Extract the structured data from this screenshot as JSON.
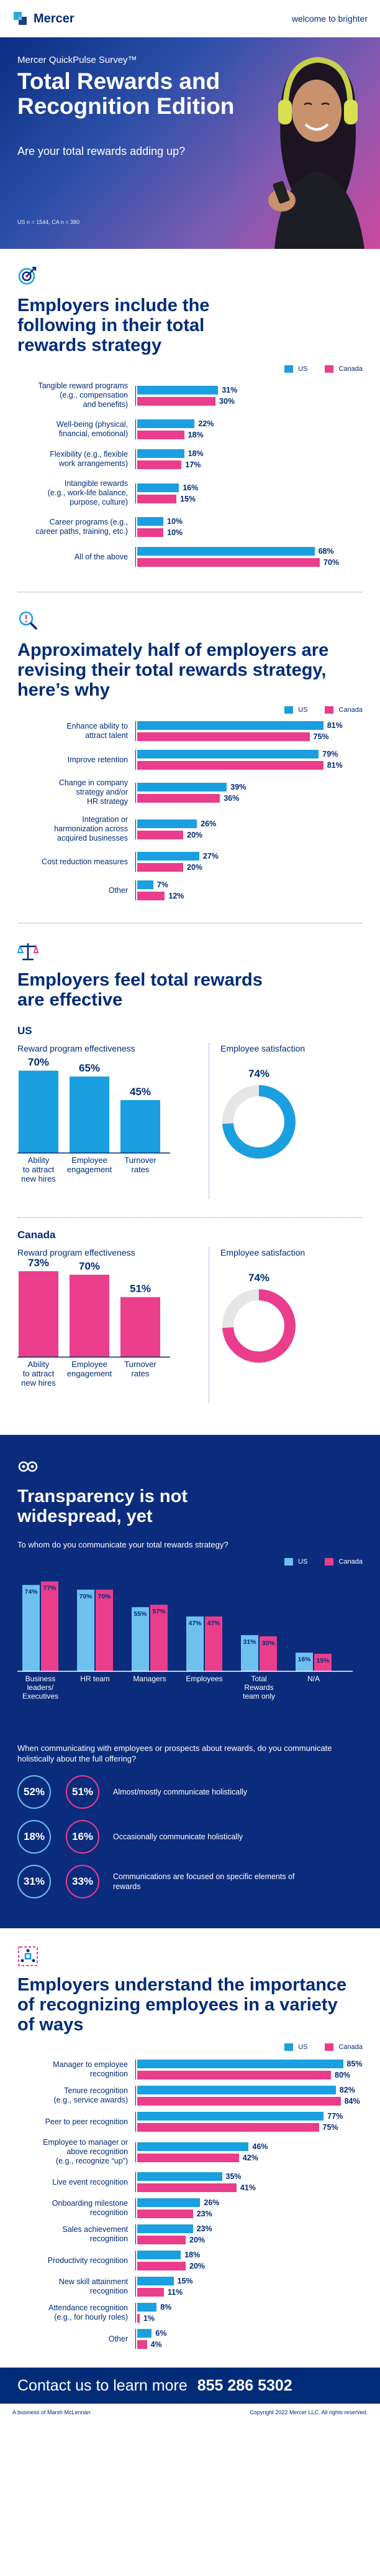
{
  "header": {
    "brand": "Mercer",
    "tagline": "welcome to brighter"
  },
  "hero": {
    "survey": "Mercer QuickPulse Survey™",
    "title": "Total Rewards and Recognition Edition",
    "subtitle": "Are your total rewards adding up?",
    "note": "US n = 1544, CA n = 380"
  },
  "colors": {
    "us": "#1a9fe0",
    "canada": "#ea3d8c",
    "navy": "#002c77"
  },
  "legend": {
    "us": "US",
    "canada": "Canada"
  },
  "strategy": {
    "title": "Employers include the following in their total rewards strategy",
    "icon": "target-icon",
    "chart_data": {
      "type": "bar",
      "orientation": "horizontal",
      "categories": [
        "Tangible reward programs (e.g., compensation and benefits)",
        "Well-being (physical, financial, emotional)",
        "Flexibility (e.g., flexible work arrangements)",
        "Intangible rewards (e.g., work-life balance, purpose, culture)",
        "Career programs (e.g., career paths, training, etc.)",
        "All of the above"
      ],
      "labels": [
        [
          "Tangible reward programs",
          "(e.g., compensation",
          "and benefits)"
        ],
        [
          "Well-being (physical,",
          "financial, emotional)"
        ],
        [
          "Flexibility (e.g., flexible",
          "work arrangements)"
        ],
        [
          "Intangible rewards",
          "(e.g., work-life balance,",
          "purpose, culture)"
        ],
        [
          "Career programs (e.g.,",
          "career paths, training, etc.)"
        ],
        [
          "All of the above"
        ]
      ],
      "series": [
        {
          "name": "US",
          "values": [
            31,
            22,
            18,
            16,
            10,
            68
          ]
        },
        {
          "name": "Canada",
          "values": [
            30,
            18,
            17,
            15,
            10,
            70
          ]
        }
      ],
      "unit": "%"
    }
  },
  "revising": {
    "title": "Approximately half of employers are revising their total rewards strategy, here’s why",
    "icon": "magnifier-icon",
    "chart_data": {
      "type": "bar",
      "orientation": "horizontal",
      "categories": [
        "Enhance ability to attract talent",
        "Improve retention",
        "Change in company strategy and/or HR strategy",
        "Integration or harmonization across acquired businesses",
        "Cost reduction measures",
        "Other"
      ],
      "labels": [
        [
          "Enhance ability to",
          "attract talent"
        ],
        [
          "Improve retention"
        ],
        [
          "Change in company",
          "strategy and/or",
          "HR strategy"
        ],
        [
          "Integration or",
          "harmonization across",
          "acquired businesses"
        ],
        [
          "Cost reduction measures"
        ],
        [
          "Other"
        ]
      ],
      "series": [
        {
          "name": "US",
          "values": [
            81,
            79,
            39,
            26,
            27,
            7
          ]
        },
        {
          "name": "Canada",
          "values": [
            75,
            81,
            36,
            20,
            20,
            12
          ]
        }
      ],
      "unit": "%"
    }
  },
  "effective": {
    "title": "Employers feel total rewards are effective",
    "icon": "scale-icon",
    "us": {
      "country": "US",
      "program_title": "Reward program effectiveness",
      "satisfaction_title": "Employee satisfaction",
      "chart_data": {
        "type": "bar",
        "categories": [
          "Ability to attract new hires",
          "Employee engagement",
          "Turnover rates"
        ],
        "labels": [
          [
            "Ability",
            "to attract",
            "new hires"
          ],
          [
            "Employee",
            "engagement"
          ],
          [
            "Turnover",
            "rates"
          ]
        ],
        "values": [
          70,
          65,
          45
        ],
        "unit": "%"
      },
      "satisfaction": 74
    },
    "canada": {
      "country": "Canada",
      "program_title": "Reward program effectiveness",
      "satisfaction_title": "Employee satisfaction",
      "chart_data": {
        "type": "bar",
        "categories": [
          "Ability to attract new hires",
          "Employee engagement",
          "Turnover rates"
        ],
        "labels": [
          [
            "Ability",
            "to attract",
            "new hires"
          ],
          [
            "Employee",
            "engagement"
          ],
          [
            "Turnover",
            "rates"
          ]
        ],
        "values": [
          73,
          70,
          51
        ],
        "unit": "%"
      },
      "satisfaction": 74
    }
  },
  "transparency": {
    "title": "Transparency is not widespread, yet",
    "icon": "eye-icon",
    "question": "To whom do you communicate your total rewards strategy?",
    "chart_data": {
      "type": "bar",
      "categories": [
        "Business leaders/ Executives",
        "HR team",
        "Managers",
        "Employees",
        "Total Rewards team only",
        "N/A"
      ],
      "labels": [
        [
          "Business",
          "leaders/",
          "Executives"
        ],
        [
          "HR team"
        ],
        [
          "Managers"
        ],
        [
          "Employees"
        ],
        [
          "Total",
          "Rewards",
          "team only"
        ],
        [
          "N/A"
        ]
      ],
      "series": [
        {
          "name": "US",
          "values": [
            74,
            70,
            55,
            47,
            31,
            16
          ]
        },
        {
          "name": "Canada",
          "values": [
            77,
            70,
            57,
            47,
            30,
            15
          ]
        }
      ],
      "unit": "%"
    },
    "holistic_question": "When communicating with employees or prospects about rewards, do you communicate holistically about the full offering?",
    "holistic": [
      {
        "us": "52%",
        "ca": "51%",
        "text": "Almost/mostly communicate holistically"
      },
      {
        "us": "18%",
        "ca": "16%",
        "text": "Occasionally communicate holistically"
      },
      {
        "us": "31%",
        "ca": "33%",
        "text": "Communications are focused on specific elements of rewards"
      }
    ]
  },
  "recognition": {
    "title": "Employers understand the importance of recognizing employees in a variety of ways",
    "icon": "network-icon",
    "chart_data": {
      "type": "bar",
      "orientation": "horizontal",
      "categories": [
        "Manager to employee recognition",
        "Tenure recognition (e.g., service awards)",
        "Peer to peer recognition",
        "Employee to manager or above recognition (e.g., recognize “up”)",
        "Live event recognition",
        "Onboarding milestone recognition",
        "Sales achievement recognition",
        "Productivity recognition",
        "New skill attainment recognition",
        "Attendance recognition (e.g., for hourly roles)",
        "Other"
      ],
      "labels": [
        [
          "Manager to employee",
          "recognition"
        ],
        [
          "Tenure recognition",
          "(e.g., service awards)"
        ],
        [
          "Peer to peer recognition"
        ],
        [
          "Employee to manager or",
          "above recognition",
          "(e.g., recognize “up”)"
        ],
        [
          "Live event recognition"
        ],
        [
          "Onboarding milestone",
          "recognition"
        ],
        [
          "Sales achievement",
          "recognition"
        ],
        [
          "Productivity recognition"
        ],
        [
          "New skill attainment",
          "recognition"
        ],
        [
          "Attendance recognition",
          "(e.g., for hourly roles)"
        ],
        [
          "Other"
        ]
      ],
      "series": [
        {
          "name": "US",
          "values": [
            85,
            82,
            77,
            46,
            35,
            26,
            23,
            18,
            15,
            8,
            6
          ]
        },
        {
          "name": "Canada",
          "values": [
            80,
            84,
            75,
            42,
            41,
            23,
            20,
            20,
            11,
            1,
            4
          ]
        }
      ],
      "unit": "%"
    }
  },
  "footer": {
    "cta": "Contact us to learn more",
    "phone": "855 286 5302",
    "business": "A business of Marsh McLennan",
    "copyright": "Copyright 2022 Mercer LLC. All rights reserved."
  }
}
